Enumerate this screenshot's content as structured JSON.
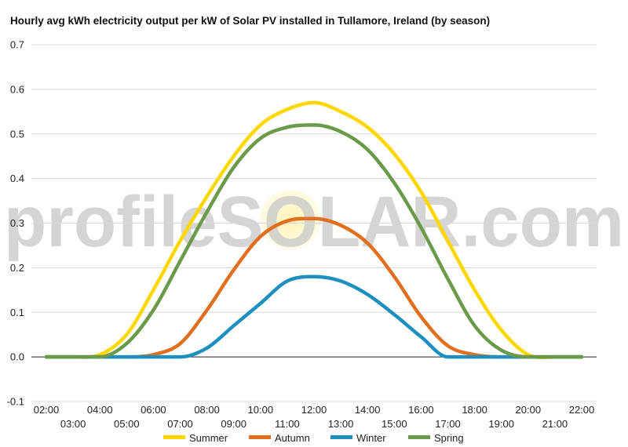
{
  "chart_data": {
    "type": "line",
    "title": "Hourly avg kWh electricity output per kW of Solar PV installed in Tullamore, Ireland (by season)",
    "xlabel": "",
    "ylabel": "",
    "watermark": "profileSOLAR.com",
    "ylim": [
      -0.1,
      0.7
    ],
    "yticks": [
      "0.7",
      "0.6",
      "0.5",
      "0.4",
      "0.3",
      "0.2",
      "0.1",
      "0.0",
      "-0.1"
    ],
    "grid": true,
    "legend": "bottom",
    "categories": [
      "02:00",
      "03:00",
      "04:00",
      "05:00",
      "06:00",
      "07:00",
      "08:00",
      "09:00",
      "10:00",
      "11:00",
      "12:00",
      "13:00",
      "14:00",
      "15:00",
      "16:00",
      "17:00",
      "18:00",
      "19:00",
      "20:00",
      "21:00",
      "22:00"
    ],
    "series": [
      {
        "name": "Summer",
        "color": "#FFD700",
        "values": [
          0.0,
          0.0,
          0.005,
          0.05,
          0.15,
          0.26,
          0.36,
          0.45,
          0.52,
          0.555,
          0.57,
          0.55,
          0.515,
          0.455,
          0.37,
          0.26,
          0.15,
          0.06,
          0.005,
          0.0,
          0.0
        ]
      },
      {
        "name": "Autumn",
        "color": "#E07020",
        "values": [
          0.0,
          0.0,
          0.0,
          0.0,
          0.005,
          0.03,
          0.105,
          0.195,
          0.27,
          0.305,
          0.31,
          0.295,
          0.255,
          0.18,
          0.09,
          0.025,
          0.005,
          0.0,
          0.0,
          0.0,
          0.0
        ]
      },
      {
        "name": "Winter",
        "color": "#1E90C0",
        "values": [
          0.0,
          0.0,
          0.0,
          0.0,
          0.0,
          0.0,
          0.02,
          0.07,
          0.12,
          0.17,
          0.18,
          0.17,
          0.14,
          0.095,
          0.045,
          0.0,
          0.0,
          0.0,
          0.0,
          0.0,
          0.0
        ]
      },
      {
        "name": "Spring",
        "color": "#6B9A4A",
        "values": [
          0.0,
          0.0,
          0.0,
          0.03,
          0.105,
          0.215,
          0.325,
          0.425,
          0.49,
          0.515,
          0.52,
          0.505,
          0.465,
          0.39,
          0.29,
          0.175,
          0.07,
          0.015,
          0.0,
          0.0,
          0.0
        ]
      }
    ]
  }
}
